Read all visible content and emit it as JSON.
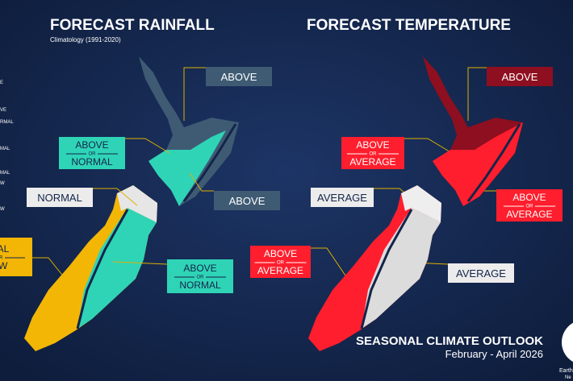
{
  "rainfall": {
    "title": "FORECAST RAINFALL",
    "subtitle": "Climatology (1991-2020)",
    "labels": [
      {
        "lines": [
          "ABOVE"
        ]
      },
      {
        "lines": [
          "ABOVE",
          "OR",
          "NORMAL"
        ]
      },
      {
        "lines": [
          "NORMAL"
        ]
      },
      {
        "lines": [
          "ABOVE"
        ]
      },
      {
        "lines": [
          "MAL",
          "OR",
          "OW"
        ]
      },
      {
        "lines": [
          "ABOVE",
          "OR",
          "NORMAL"
        ]
      }
    ]
  },
  "temperature": {
    "title": "FORECAST TEMPERATURE",
    "labels": [
      {
        "lines": [
          "ABOVE"
        ]
      },
      {
        "lines": [
          "ABOVE",
          "OR",
          "AVERAGE"
        ]
      },
      {
        "lines": [
          "AVERAGE"
        ]
      },
      {
        "lines": [
          "ABOVE",
          "OR",
          "AVERAGE"
        ]
      },
      {
        "lines": [
          "ABOVE",
          "OR",
          "AVERAGE"
        ]
      },
      {
        "lines": [
          "AVERAGE"
        ]
      }
    ]
  },
  "legend": [
    "E",
    "VE",
    "RMAL",
    "MAL",
    "MAL",
    "W",
    "W"
  ],
  "footer": {
    "title": "SEASONAL CLIMATE OUTLOOK",
    "period": "February - April 2026",
    "logo": [
      "Earth",
      "Ne"
    ]
  }
}
